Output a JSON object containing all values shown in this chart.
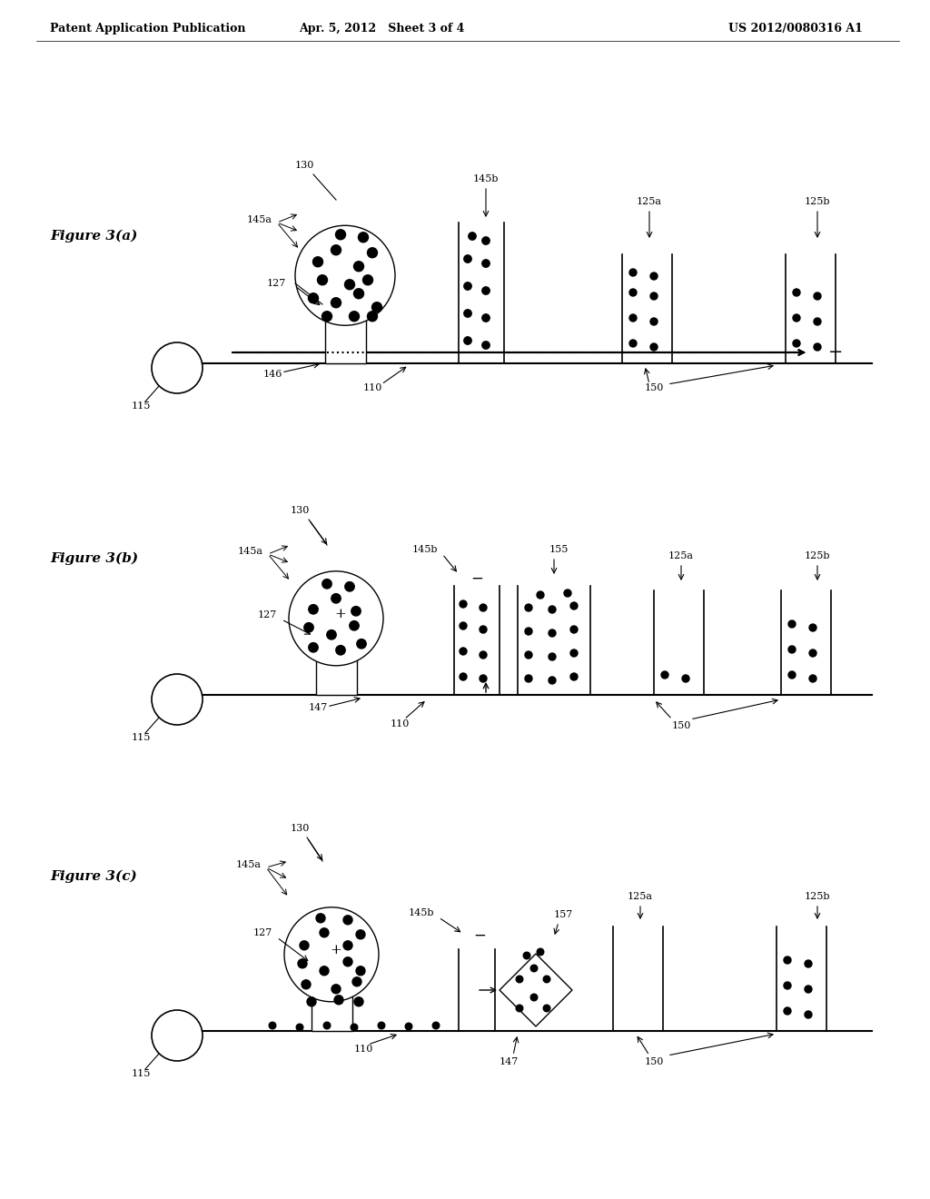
{
  "header_left": "Patent Application Publication",
  "header_center": "Apr. 5, 2012   Sheet 3 of 4",
  "header_right": "US 2012/0080316 A1",
  "figures": [
    "Figure 3(a)",
    "Figure 3(b)",
    "Figure 3(c)"
  ],
  "bg_color": "#ffffff",
  "line_color": "#000000",
  "dot_color": "#000000",
  "gray_fill": "#d0d0d0"
}
